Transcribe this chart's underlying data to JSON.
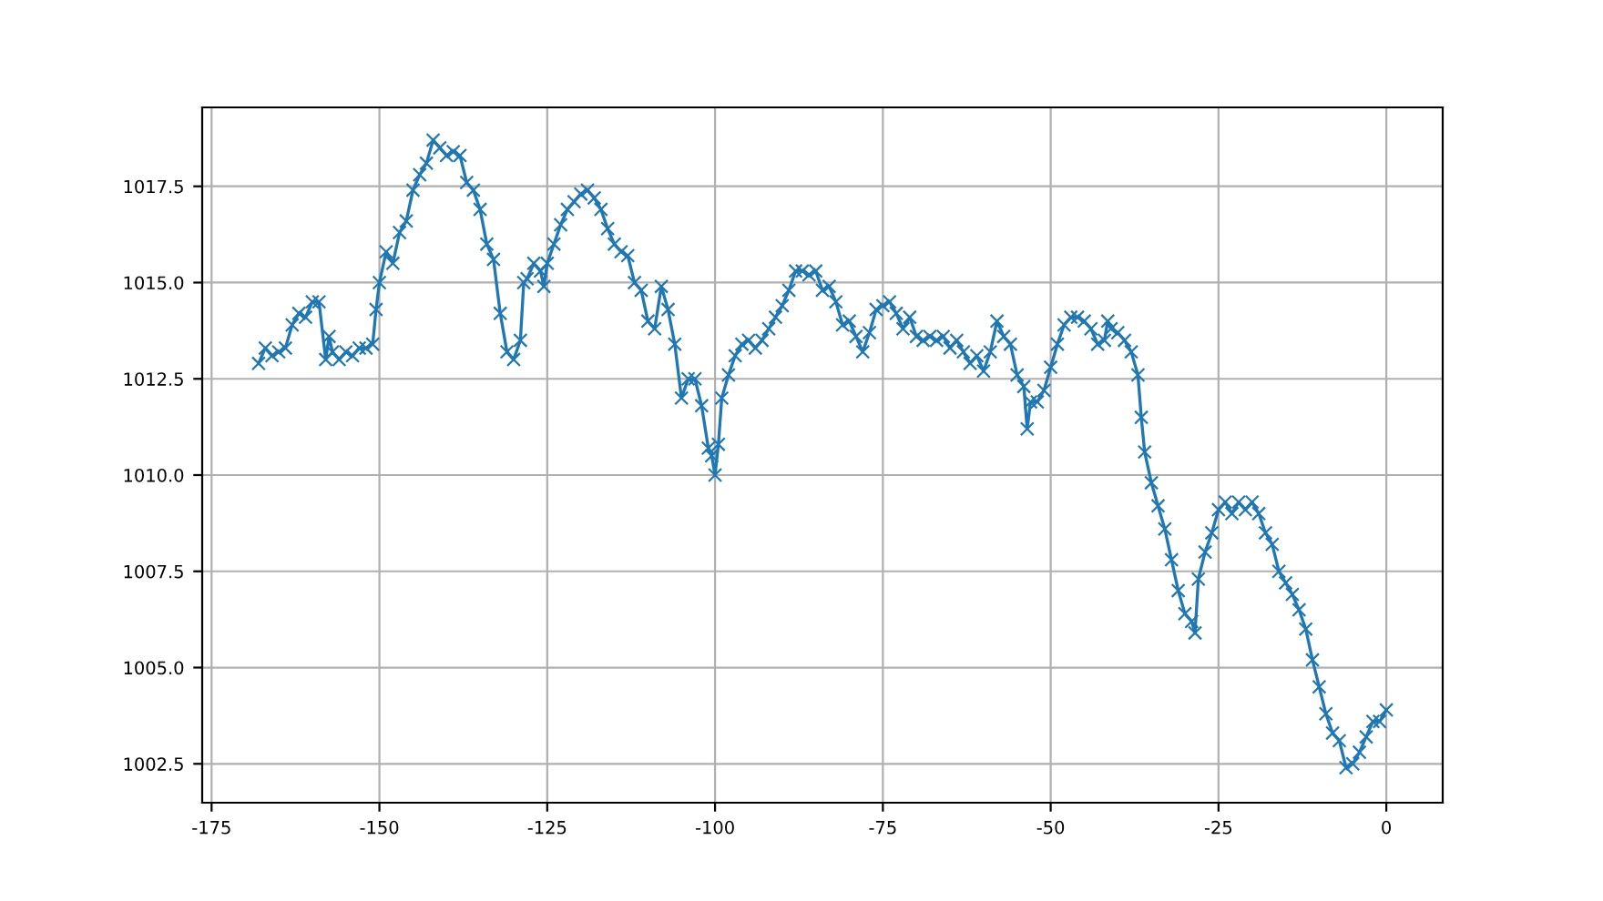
{
  "chart_data": {
    "type": "line",
    "marker": "cross",
    "grid": true,
    "xlim": [
      -176.4,
      8.4
    ],
    "ylim": [
      1001.49,
      1019.55
    ],
    "xticks": [
      -175,
      -150,
      -125,
      -100,
      -75,
      -50,
      -25,
      0
    ],
    "yticks": [
      1002.5,
      {
        "value": 1005,
        "label": "1005.0"
      },
      1007.5,
      {
        "value": 1010,
        "label": "1010.0"
      },
      1012.5,
      {
        "value": 1015,
        "label": "1015.0"
      },
      1017.5
    ],
    "series": [
      {
        "color": "#1f77b4",
        "x": [
          -168,
          -167,
          -166,
          -165,
          -164,
          -163,
          -162,
          -161,
          -160,
          -159,
          -158,
          -157.5,
          -157,
          -156,
          -155,
          -154,
          -153,
          -152,
          -151,
          -150.5,
          -150,
          -149,
          -148,
          -147,
          -146,
          -145,
          -144,
          -143,
          -142,
          -141,
          -140,
          -139,
          -138,
          -137,
          -136,
          -135,
          -134,
          -133,
          -132,
          -131,
          -130,
          -129,
          -128.5,
          -128,
          -127,
          -126,
          -125.5,
          -125,
          -124,
          -123,
          -122,
          -121,
          -120,
          -119,
          -118,
          -117,
          -116,
          -115,
          -114,
          -113,
          -112,
          -111,
          -110,
          -109,
          -108,
          -107,
          -106,
          -105,
          -104,
          -103,
          -102,
          -101,
          -100.5,
          -100,
          -99.5,
          -99,
          -98,
          -97,
          -96,
          -95,
          -94,
          -93,
          -92,
          -91,
          -90,
          -89,
          -88,
          -87,
          -86,
          -85,
          -84,
          -83,
          -82,
          -81,
          -80,
          -79,
          -78,
          -77,
          -76,
          -75,
          -74,
          -73,
          -72,
          -71,
          -70,
          -69,
          -68,
          -67,
          -66,
          -65,
          -64,
          -63,
          -62,
          -61,
          -60,
          -59,
          -58,
          -57,
          -56,
          -55,
          -54,
          -53.5,
          -53,
          -52,
          -51,
          -50,
          -49,
          -48,
          -47,
          -46,
          -45,
          -44,
          -43,
          -42,
          -41.5,
          -41,
          -40,
          -39,
          -38,
          -37,
          -36.5,
          -36,
          -35,
          -34,
          -33,
          -32,
          -31,
          -30,
          -29,
          -28.5,
          -28,
          -27,
          -26,
          -25,
          -24,
          -23,
          -22,
          -21,
          -20,
          -19,
          -18,
          -17,
          -16,
          -15,
          -14,
          -13,
          -12,
          -11,
          -10,
          -9,
          -8,
          -7,
          -6,
          -5,
          -4,
          -3,
          -2,
          -1,
          0
        ],
        "values": [
          1012.9,
          1013.3,
          1013.1,
          1013.2,
          1013.3,
          1013.9,
          1014.2,
          1014.1,
          1014.5,
          1014.5,
          1013.0,
          1013.6,
          1013.2,
          1013.0,
          1013.2,
          1013.1,
          1013.3,
          1013.3,
          1013.4,
          1014.3,
          1015.0,
          1015.8,
          1015.5,
          1016.3,
          1016.6,
          1017.4,
          1017.8,
          1018.1,
          1018.7,
          1018.5,
          1018.3,
          1018.4,
          1018.3,
          1017.6,
          1017.4,
          1016.9,
          1016.0,
          1015.6,
          1014.2,
          1013.2,
          1013.0,
          1013.5,
          1015.0,
          1015.1,
          1015.5,
          1015.3,
          1014.9,
          1015.5,
          1016.0,
          1016.5,
          1016.9,
          1017.1,
          1017.3,
          1017.4,
          1017.2,
          1016.9,
          1016.4,
          1016.0,
          1015.8,
          1015.7,
          1015.0,
          1014.8,
          1014.0,
          1013.8,
          1014.9,
          1014.3,
          1013.4,
          1012.0,
          1012.5,
          1012.5,
          1011.8,
          1010.7,
          1010.5,
          1010.0,
          1010.8,
          1012.0,
          1012.6,
          1013.1,
          1013.4,
          1013.5,
          1013.3,
          1013.5,
          1013.8,
          1014.1,
          1014.4,
          1014.8,
          1015.3,
          1015.3,
          1015.2,
          1015.3,
          1014.8,
          1014.9,
          1014.5,
          1013.9,
          1014.0,
          1013.6,
          1013.2,
          1013.7,
          1014.3,
          1014.4,
          1014.5,
          1014.2,
          1013.8,
          1014.1,
          1013.6,
          1013.5,
          1013.6,
          1013.5,
          1013.6,
          1013.3,
          1013.5,
          1013.2,
          1012.9,
          1013.1,
          1012.7,
          1013.2,
          1014.0,
          1013.6,
          1013.4,
          1012.6,
          1012.3,
          1011.2,
          1011.9,
          1011.9,
          1012.2,
          1012.8,
          1013.4,
          1013.9,
          1014.1,
          1014.1,
          1014.0,
          1013.8,
          1013.4,
          1013.5,
          1014.0,
          1013.8,
          1013.7,
          1013.5,
          1013.2,
          1012.6,
          1011.5,
          1010.6,
          1009.8,
          1009.2,
          1008.6,
          1007.8,
          1007.0,
          1006.4,
          1006.2,
          1005.9,
          1007.3,
          1008.0,
          1008.5,
          1009.1,
          1009.3,
          1009.0,
          1009.3,
          1009.1,
          1009.3,
          1009.0,
          1008.5,
          1008.2,
          1007.5,
          1007.2,
          1006.9,
          1006.5,
          1006.0,
          1005.2,
          1004.5,
          1003.8,
          1003.3,
          1003.1,
          1002.4,
          1002.5,
          1002.8,
          1003.2,
          1003.6,
          1003.6,
          1003.9
        ]
      }
    ]
  }
}
